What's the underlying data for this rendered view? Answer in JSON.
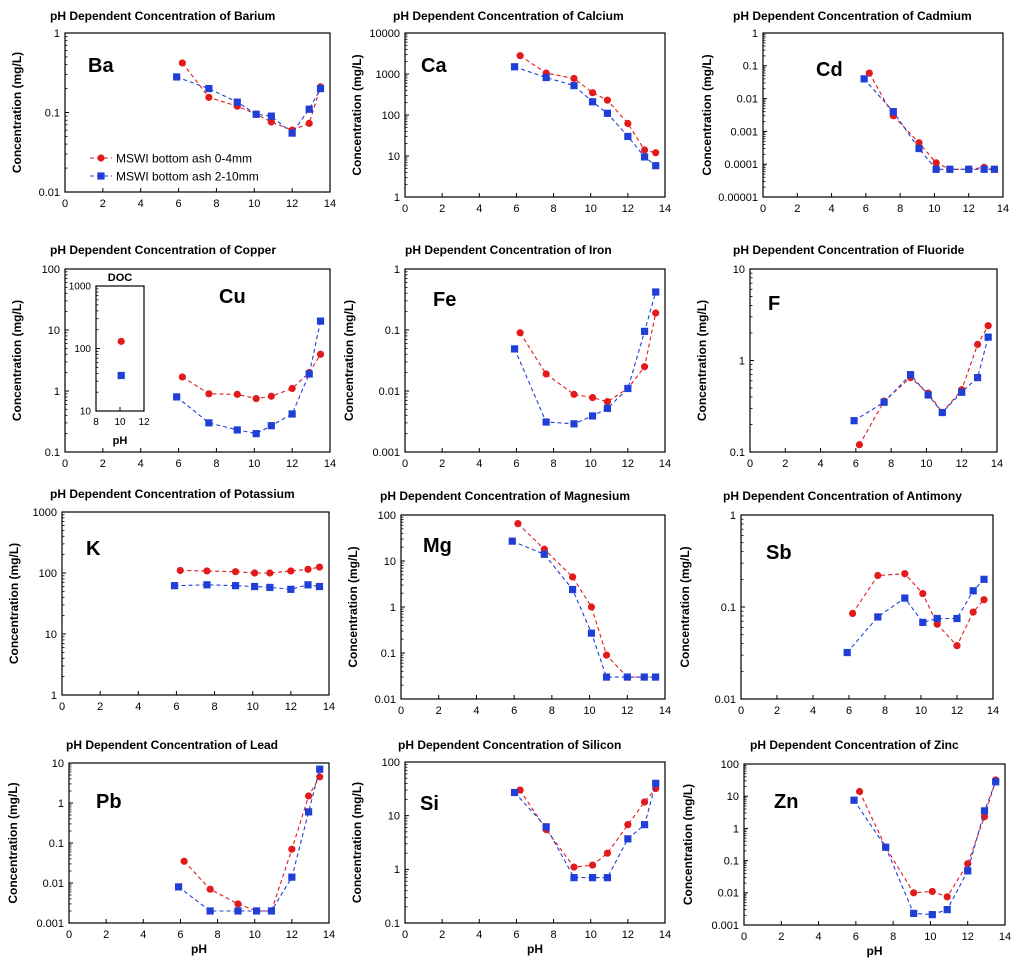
{
  "figure": {
    "colors": {
      "series_a": "#e31a1c",
      "series_b": "#1f3fd6",
      "frame": "#000000"
    }
  },
  "chart_data": [
    {
      "type": "scatter",
      "element": "Barium",
      "symbol": "Ba",
      "title": "pH Dependent Concentration of Barium",
      "xlabel": "",
      "ylabel": "Concentration (mg/L)",
      "xlim": [
        0,
        14
      ],
      "xticks": [
        0,
        2,
        4,
        6,
        8,
        10,
        12,
        14
      ],
      "ylim": [
        0.01,
        1
      ],
      "yscale": "log",
      "yticklabels": [
        "0.01",
        "0.1",
        "1"
      ],
      "grid": false,
      "legend": "left-lower",
      "series": [
        {
          "name": "MSWI bottom ash 0-4mm",
          "marker": "circle",
          "color": "red",
          "x": [
            6.2,
            7.6,
            9.1,
            10.1,
            10.9,
            12.0,
            12.9,
            13.5
          ],
          "y": [
            0.42,
            0.155,
            0.12,
            0.095,
            0.076,
            0.06,
            0.073,
            0.21
          ]
        },
        {
          "name": "MSWI bottom ash 2-10mm",
          "marker": "square",
          "color": "blue",
          "x": [
            5.9,
            7.6,
            9.1,
            10.1,
            10.9,
            12.0,
            12.9,
            13.5
          ],
          "y": [
            0.28,
            0.2,
            0.135,
            0.095,
            0.09,
            0.055,
            0.11,
            0.2
          ]
        }
      ]
    },
    {
      "type": "scatter",
      "element": "Calcium",
      "symbol": "Ca",
      "title": "pH Dependent Concentration of Calcium",
      "xlabel": "",
      "ylabel": "Concentration (mg/L)",
      "xlim": [
        0,
        14
      ],
      "xticks": [
        0,
        2,
        4,
        6,
        8,
        10,
        12,
        14
      ],
      "ylim": [
        1,
        10000
      ],
      "yscale": "log",
      "yticklabels": [
        "1",
        "10",
        "100",
        "1000",
        "10000"
      ],
      "grid": false,
      "series": [
        {
          "marker": "circle",
          "color": "red",
          "x": [
            6.2,
            7.6,
            9.1,
            10.1,
            10.9,
            12.0,
            12.9,
            13.5
          ],
          "y": [
            2800,
            1050,
            780,
            350,
            230,
            62,
            14,
            12
          ]
        },
        {
          "marker": "square",
          "color": "blue",
          "x": [
            5.9,
            7.6,
            9.1,
            10.1,
            10.9,
            12.0,
            12.9,
            13.5
          ],
          "y": [
            1500,
            820,
            520,
            210,
            110,
            30,
            9.5,
            5.8
          ]
        }
      ]
    },
    {
      "type": "scatter",
      "element": "Cadmium",
      "symbol": "Cd",
      "title": "pH Dependent Concentration of Cadmium",
      "xlabel": "",
      "ylabel": "Concentration (mg/L)",
      "xlim": [
        0,
        14
      ],
      "xticks": [
        0,
        2,
        4,
        6,
        8,
        10,
        12,
        14
      ],
      "ylim": [
        1e-05,
        1
      ],
      "yscale": "log",
      "yticklabels": [
        "0.00001",
        "0.0001",
        "0.001",
        "0.01",
        "0.1",
        "1"
      ],
      "grid": false,
      "series": [
        {
          "marker": "circle",
          "color": "red",
          "x": [
            6.2,
            7.6,
            9.1,
            10.1,
            10.9,
            12.0,
            12.9,
            13.5
          ],
          "y": [
            0.06,
            0.003,
            0.00045,
            0.00011,
            7e-05,
            7e-05,
            8e-05,
            7e-05
          ]
        },
        {
          "marker": "square",
          "color": "blue",
          "x": [
            5.9,
            7.6,
            9.1,
            10.1,
            10.9,
            12.0,
            12.9,
            13.5
          ],
          "y": [
            0.04,
            0.004,
            0.0003,
            7e-05,
            7e-05,
            7e-05,
            7e-05,
            7e-05
          ]
        }
      ]
    },
    {
      "type": "scatter",
      "element": "Copper",
      "symbol": "Cu",
      "title": "pH Dependent Concentration of Copper",
      "xlabel": "",
      "ylabel": "Concentration (mg/L)",
      "xlim": [
        0,
        14
      ],
      "xticks": [
        0,
        2,
        4,
        6,
        8,
        10,
        12,
        14
      ],
      "ylim": [
        0.1,
        100
      ],
      "yscale": "log",
      "yticklabels": [
        "0.1",
        "1",
        "10",
        "100"
      ],
      "grid": false,
      "series": [
        {
          "marker": "circle",
          "color": "red",
          "x": [
            6.2,
            7.6,
            9.1,
            10.1,
            10.9,
            12.0,
            12.9,
            13.5
          ],
          "y": [
            1.7,
            0.9,
            0.88,
            0.75,
            0.82,
            1.1,
            2.0,
            4.0
          ]
        },
        {
          "marker": "square",
          "color": "blue",
          "x": [
            5.9,
            7.6,
            9.1,
            10.1,
            10.9,
            12.0,
            12.9,
            13.5
          ],
          "y": [
            0.8,
            0.3,
            0.23,
            0.2,
            0.27,
            0.42,
            1.9,
            14
          ]
        }
      ],
      "inset": {
        "title": "DOC",
        "xlabel": "pH",
        "xlim": [
          8,
          12
        ],
        "xticks": [
          8,
          10,
          12
        ],
        "ylim": [
          10,
          1000
        ],
        "yscale": "log",
        "yticklabels": [
          "10",
          "100",
          "1000"
        ],
        "series": [
          {
            "marker": "circle",
            "color": "red",
            "x": [
              10.1
            ],
            "y": [
              130
            ]
          },
          {
            "marker": "square",
            "color": "blue",
            "x": [
              10.1
            ],
            "y": [
              37
            ]
          }
        ]
      }
    },
    {
      "type": "scatter",
      "element": "Iron",
      "symbol": "Fe",
      "title": "pH Dependent Concentration of Iron",
      "xlabel": "",
      "ylabel": "Concentration (mg/L)",
      "xlim": [
        0,
        14
      ],
      "xticks": [
        0,
        2,
        4,
        6,
        8,
        10,
        12,
        14
      ],
      "ylim": [
        0.001,
        1
      ],
      "yscale": "log",
      "yticklabels": [
        "0.001",
        "0.01",
        "0.1",
        "1"
      ],
      "grid": false,
      "series": [
        {
          "marker": "circle",
          "color": "red",
          "x": [
            6.2,
            7.6,
            9.1,
            10.1,
            10.9,
            12.0,
            12.9,
            13.5
          ],
          "y": [
            0.09,
            0.019,
            0.0088,
            0.0078,
            0.0067,
            0.011,
            0.025,
            0.19
          ]
        },
        {
          "marker": "square",
          "color": "blue",
          "x": [
            5.9,
            7.6,
            9.1,
            10.1,
            10.9,
            12.0,
            12.9,
            13.5
          ],
          "y": [
            0.049,
            0.0031,
            0.0029,
            0.0039,
            0.0052,
            0.011,
            0.095,
            0.42
          ]
        }
      ]
    },
    {
      "type": "scatter",
      "element": "Fluoride",
      "symbol": "F",
      "title": "pH Dependent Concentration of Fluoride",
      "xlabel": "",
      "ylabel": "Concentration (mg/L)",
      "xlim": [
        0,
        14
      ],
      "xticks": [
        0,
        2,
        4,
        6,
        8,
        10,
        12,
        14
      ],
      "ylim": [
        0.1,
        10
      ],
      "yscale": "log",
      "yticklabels": [
        "0.1",
        "1",
        "10"
      ],
      "grid": false,
      "series": [
        {
          "marker": "circle",
          "color": "red",
          "x": [
            6.2,
            7.6,
            9.1,
            10.1,
            10.9,
            12.0,
            12.9,
            13.5
          ],
          "y": [
            0.12,
            0.36,
            0.65,
            0.44,
            0.27,
            0.48,
            1.5,
            2.4
          ]
        },
        {
          "marker": "square",
          "color": "blue",
          "x": [
            5.9,
            7.6,
            9.1,
            10.1,
            10.9,
            12.0,
            12.9,
            13.5
          ],
          "y": [
            0.22,
            0.35,
            0.7,
            0.42,
            0.27,
            0.45,
            0.65,
            1.8
          ]
        }
      ]
    },
    {
      "type": "scatter",
      "element": "Potassium",
      "symbol": "K",
      "title": "pH Dependent Concentration of Potassium",
      "xlabel": "",
      "ylabel": "Concentration (mg/L)",
      "xlim": [
        0,
        14
      ],
      "xticks": [
        0,
        2,
        4,
        6,
        8,
        10,
        12,
        14
      ],
      "ylim": [
        1,
        1000
      ],
      "yscale": "log",
      "yticklabels": [
        "1",
        "10",
        "100",
        "1000"
      ],
      "grid": false,
      "series": [
        {
          "marker": "circle",
          "color": "red",
          "x": [
            6.2,
            7.6,
            9.1,
            10.1,
            10.9,
            12.0,
            12.9,
            13.5
          ],
          "y": [
            110,
            108,
            105,
            100,
            100,
            108,
            115,
            125
          ]
        },
        {
          "marker": "square",
          "color": "blue",
          "x": [
            5.9,
            7.6,
            9.1,
            10.1,
            10.9,
            12.0,
            12.9,
            13.5
          ],
          "y": [
            62,
            64,
            62,
            60,
            58,
            54,
            64,
            60
          ]
        }
      ]
    },
    {
      "type": "scatter",
      "element": "Magnesium",
      "symbol": "Mg",
      "title": "pH Dependent Concentration of Magnesium",
      "xlabel": "",
      "ylabel": "Concentration (mg/L)",
      "xlim": [
        0,
        14
      ],
      "xticks": [
        0,
        2,
        4,
        6,
        8,
        10,
        12,
        14
      ],
      "ylim": [
        0.01,
        100
      ],
      "yscale": "log",
      "yticklabels": [
        "0.01",
        "0.1",
        "1",
        "10",
        "100"
      ],
      "grid": false,
      "series": [
        {
          "marker": "circle",
          "color": "red",
          "x": [
            6.2,
            7.6,
            9.1,
            10.1,
            10.9,
            12.0,
            12.9,
            13.5
          ],
          "y": [
            65,
            18,
            4.5,
            1.0,
            0.09,
            0.03,
            0.03,
            0.03
          ]
        },
        {
          "marker": "square",
          "color": "blue",
          "x": [
            5.9,
            7.6,
            9.1,
            10.1,
            10.9,
            12.0,
            12.9,
            13.5
          ],
          "y": [
            27,
            14,
            2.4,
            0.27,
            0.03,
            0.03,
            0.03,
            0.03
          ]
        }
      ]
    },
    {
      "type": "scatter",
      "element": "Antimony",
      "symbol": "Sb",
      "title": "pH Dependent Concentration of Antimony",
      "xlabel": "",
      "ylabel": "Concentration (mg/L)",
      "xlim": [
        0,
        14
      ],
      "xticks": [
        0,
        2,
        4,
        6,
        8,
        10,
        12,
        14
      ],
      "ylim": [
        0.01,
        1
      ],
      "yscale": "log",
      "yticklabels": [
        "0.01",
        "0.1",
        "1"
      ],
      "grid": false,
      "series": [
        {
          "marker": "circle",
          "color": "red",
          "x": [
            6.2,
            7.6,
            9.1,
            10.1,
            10.9,
            12.0,
            12.9,
            13.5
          ],
          "y": [
            0.085,
            0.22,
            0.23,
            0.14,
            0.065,
            0.038,
            0.088,
            0.12
          ]
        },
        {
          "marker": "square",
          "color": "blue",
          "x": [
            5.9,
            7.6,
            9.1,
            10.1,
            10.9,
            12.0,
            12.9,
            13.5
          ],
          "y": [
            0.032,
            0.078,
            0.125,
            0.068,
            0.075,
            0.075,
            0.15,
            0.2
          ]
        }
      ]
    },
    {
      "type": "scatter",
      "element": "Lead",
      "symbol": "Pb",
      "title": "pH Dependent Concentration of Lead",
      "xlabel": "pH",
      "ylabel": "Concentration (mg/L)",
      "xlim": [
        0,
        14
      ],
      "xticks": [
        0,
        2,
        4,
        6,
        8,
        10,
        12,
        14
      ],
      "ylim": [
        0.001,
        10
      ],
      "yscale": "log",
      "yticklabels": [
        "0.001",
        "0.01",
        "0.1",
        "1",
        "10"
      ],
      "grid": false,
      "series": [
        {
          "marker": "circle",
          "color": "red",
          "x": [
            6.2,
            7.6,
            9.1,
            10.1,
            10.9,
            12.0,
            12.9,
            13.5
          ],
          "y": [
            0.035,
            0.007,
            0.003,
            0.002,
            0.002,
            0.07,
            1.5,
            4.5
          ]
        },
        {
          "marker": "square",
          "color": "blue",
          "x": [
            5.9,
            7.6,
            9.1,
            10.1,
            10.9,
            12.0,
            12.9,
            13.5
          ],
          "y": [
            0.008,
            0.002,
            0.002,
            0.002,
            0.002,
            0.014,
            0.6,
            7
          ]
        }
      ]
    },
    {
      "type": "scatter",
      "element": "Silicon",
      "symbol": "Si",
      "title": "pH Dependent Concentration of Silicon",
      "xlabel": "pH",
      "ylabel": "Concentration (mg/L)",
      "xlim": [
        0,
        14
      ],
      "xticks": [
        0,
        2,
        4,
        6,
        8,
        10,
        12,
        14
      ],
      "ylim": [
        0.1,
        100
      ],
      "yscale": "log",
      "yticklabels": [
        "0.1",
        "1",
        "10",
        "100"
      ],
      "grid": false,
      "series": [
        {
          "marker": "circle",
          "color": "red",
          "x": [
            6.2,
            7.6,
            9.1,
            10.1,
            10.9,
            12.0,
            12.9,
            13.5
          ],
          "y": [
            30,
            5.5,
            1.1,
            1.2,
            2.0,
            6.8,
            18,
            32
          ]
        },
        {
          "marker": "square",
          "color": "blue",
          "x": [
            5.9,
            7.6,
            9.1,
            10.1,
            10.9,
            12.0,
            12.9,
            13.5
          ],
          "y": [
            27,
            6.2,
            0.7,
            0.7,
            0.7,
            3.7,
            6.8,
            40
          ]
        }
      ]
    },
    {
      "type": "scatter",
      "element": "Zinc",
      "symbol": "Zn",
      "title": "pH Dependent Concentration of Zinc",
      "xlabel": "pH",
      "ylabel": "Concentration (mg/L)",
      "xlim": [
        0,
        14
      ],
      "xticks": [
        0,
        2,
        4,
        6,
        8,
        10,
        12,
        14
      ],
      "ylim": [
        0.001,
        100
      ],
      "yscale": "log",
      "yticklabels": [
        "0.001",
        "0.01",
        "0.1",
        "1",
        "10",
        "100"
      ],
      "grid": false,
      "series": [
        {
          "marker": "circle",
          "color": "red",
          "x": [
            6.2,
            7.6,
            9.1,
            10.1,
            10.9,
            12.0,
            12.9,
            13.5
          ],
          "y": [
            14,
            0.26,
            0.01,
            0.011,
            0.0075,
            0.08,
            2.3,
            32
          ]
        },
        {
          "marker": "square",
          "color": "blue",
          "x": [
            5.9,
            7.6,
            9.1,
            10.1,
            10.9,
            12.0,
            12.9,
            13.5
          ],
          "y": [
            7.5,
            0.26,
            0.0023,
            0.0021,
            0.003,
            0.048,
            3.5,
            28
          ]
        }
      ]
    }
  ]
}
